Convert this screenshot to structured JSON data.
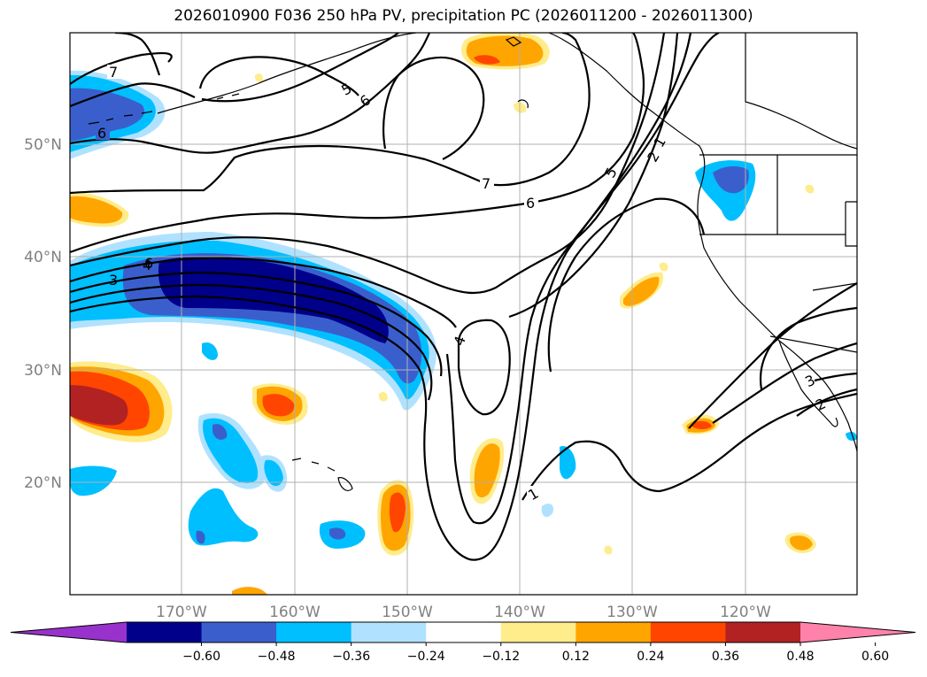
{
  "title": "2026010900 F036 250 hPa PV, precipitation PC (2026011200 - 2026011300)",
  "latitude_labels": [
    "50°N",
    "40°N",
    "30°N",
    "20°N"
  ],
  "longitude_labels": [
    "170°W",
    "160°W",
    "150°W",
    "140°W",
    "130°W",
    "120°W"
  ],
  "pv_contour_labels": [
    "7",
    "6",
    "5",
    "6",
    "7",
    "6",
    "6",
    "4",
    "3",
    "5",
    "2",
    "4",
    "1",
    "1",
    "3",
    "2"
  ],
  "colorbar": {
    "tick_labels": [
      "−0.60",
      "−0.48",
      "−0.36",
      "−0.24",
      "−0.12",
      "0.12",
      "0.24",
      "0.36",
      "0.48",
      "0.60"
    ],
    "colors": [
      "#9932cc",
      "#00008b",
      "#3a5fcd",
      "#00bfff",
      "#b0e2ff",
      "#ffffff",
      "#ffec8b",
      "#ffa500",
      "#ff4500",
      "#b22222",
      "#ff82ab"
    ]
  }
}
